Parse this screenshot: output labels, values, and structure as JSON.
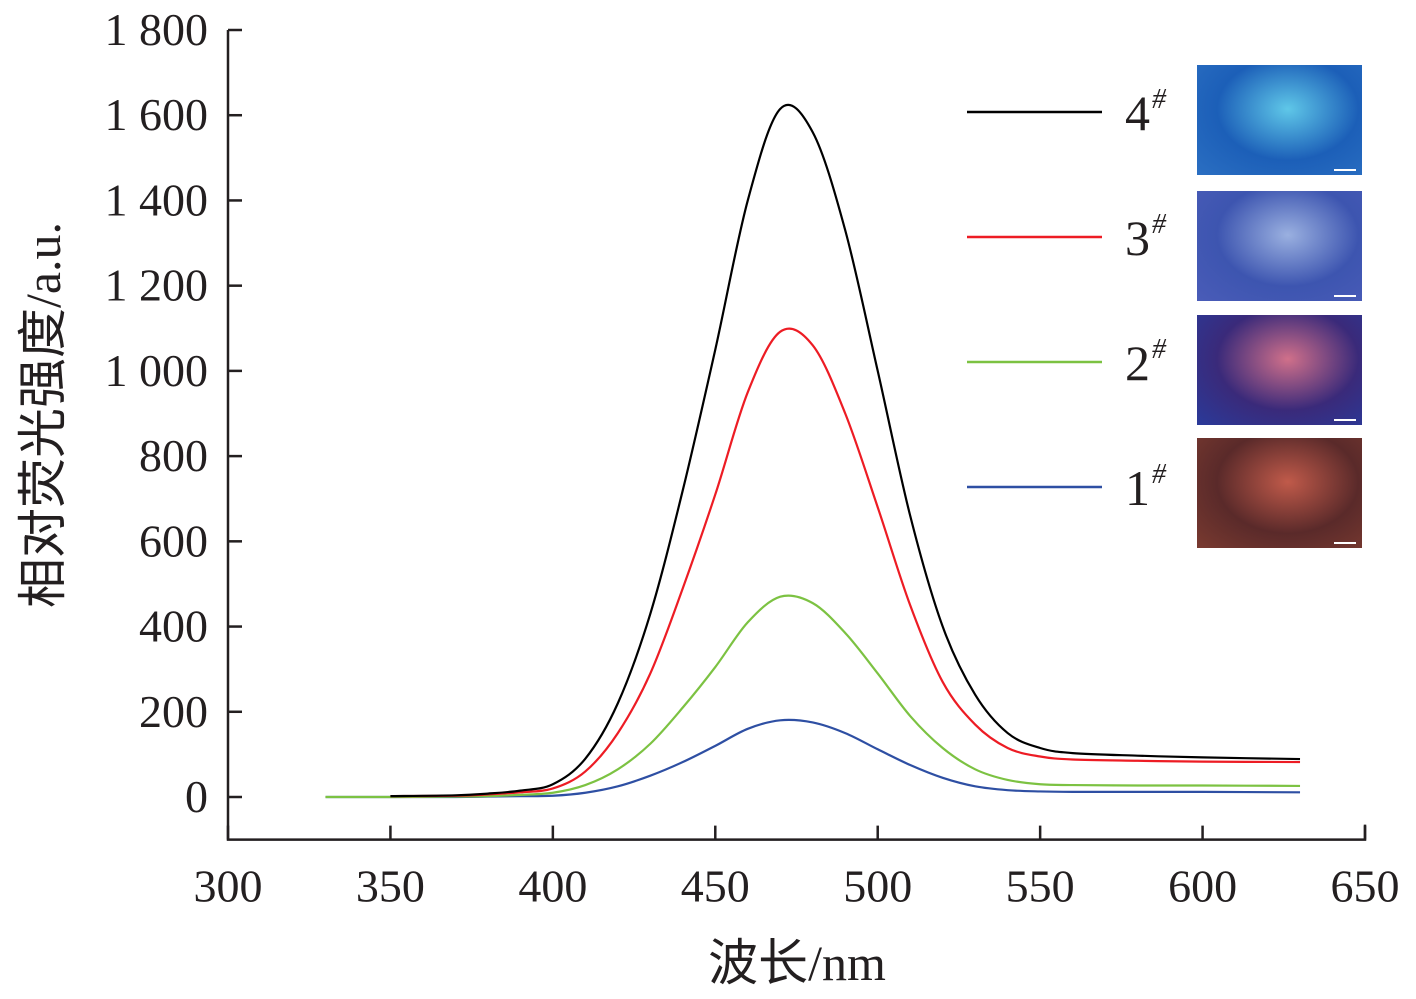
{
  "chart_data": {
    "type": "line",
    "title": "",
    "xlabel": "波长/nm",
    "ylabel": "相对荧光强度/a.u.",
    "xlim": [
      300,
      650
    ],
    "ylim": [
      -100,
      1800
    ],
    "xticks": [
      300,
      350,
      400,
      450,
      500,
      550,
      600,
      650
    ],
    "xtick_labels": [
      "300",
      "350",
      "400",
      "450",
      "500",
      "550",
      "600",
      "650"
    ],
    "yticks": [
      0,
      200,
      400,
      600,
      800,
      1000,
      1200,
      1400,
      1600,
      1800
    ],
    "ytick_labels": [
      "0",
      "200",
      "400",
      "600",
      "800",
      "1 000",
      "1 200",
      "1 400",
      "1 600",
      "1 800"
    ],
    "grid": false,
    "legend_position": "top-right",
    "x": [
      330,
      350,
      370,
      380,
      390,
      400,
      410,
      420,
      430,
      440,
      450,
      460,
      470,
      480,
      490,
      500,
      510,
      520,
      530,
      540,
      550,
      560,
      580,
      600,
      630
    ],
    "series": [
      {
        "name": "4",
        "sup": "#",
        "color": "#000000",
        "values": [
          null,
          2,
          4,
          8,
          15,
          30,
          90,
          220,
          430,
          720,
          1050,
          1400,
          1615,
          1560,
          1330,
          1000,
          660,
          400,
          240,
          150,
          115,
          103,
          97,
          93,
          89
        ]
      },
      {
        "name": "3",
        "sup": "#",
        "color": "#ed1c24",
        "values": [
          null,
          2,
          3,
          6,
          11,
          20,
          60,
          150,
          290,
          490,
          710,
          950,
          1092,
          1060,
          900,
          680,
          450,
          270,
          170,
          115,
          95,
          88,
          85,
          83,
          82
        ]
      },
      {
        "name": "2",
        "sup": "#",
        "color": "#7cc242",
        "values": [
          0,
          0,
          1,
          2,
          5,
          10,
          28,
          65,
          125,
          210,
          305,
          410,
          470,
          455,
          385,
          290,
          190,
          115,
          65,
          40,
          30,
          28,
          27,
          27,
          26
        ]
      },
      {
        "name": "1",
        "sup": "#",
        "color": "#2e4fa3",
        "values": [
          0,
          0,
          0,
          1,
          2,
          3,
          10,
          25,
          50,
          82,
          120,
          160,
          180,
          175,
          150,
          112,
          75,
          45,
          25,
          16,
          13,
          12,
          12,
          12,
          11
        ]
      }
    ],
    "insets": [
      {
        "series": "4",
        "colors": [
          "#1c5fb8",
          "#5fc7e8",
          "#2b6fc2"
        ]
      },
      {
        "series": "3",
        "colors": [
          "#3d55b0",
          "#9ab0e0",
          "#4a5cb8"
        ]
      },
      {
        "series": "2",
        "colors": [
          "#3a2a7a",
          "#d0708a",
          "#2a3a9a"
        ]
      },
      {
        "series": "1",
        "colors": [
          "#5a2a2a",
          "#c05a4a",
          "#7a3a30"
        ]
      }
    ]
  }
}
